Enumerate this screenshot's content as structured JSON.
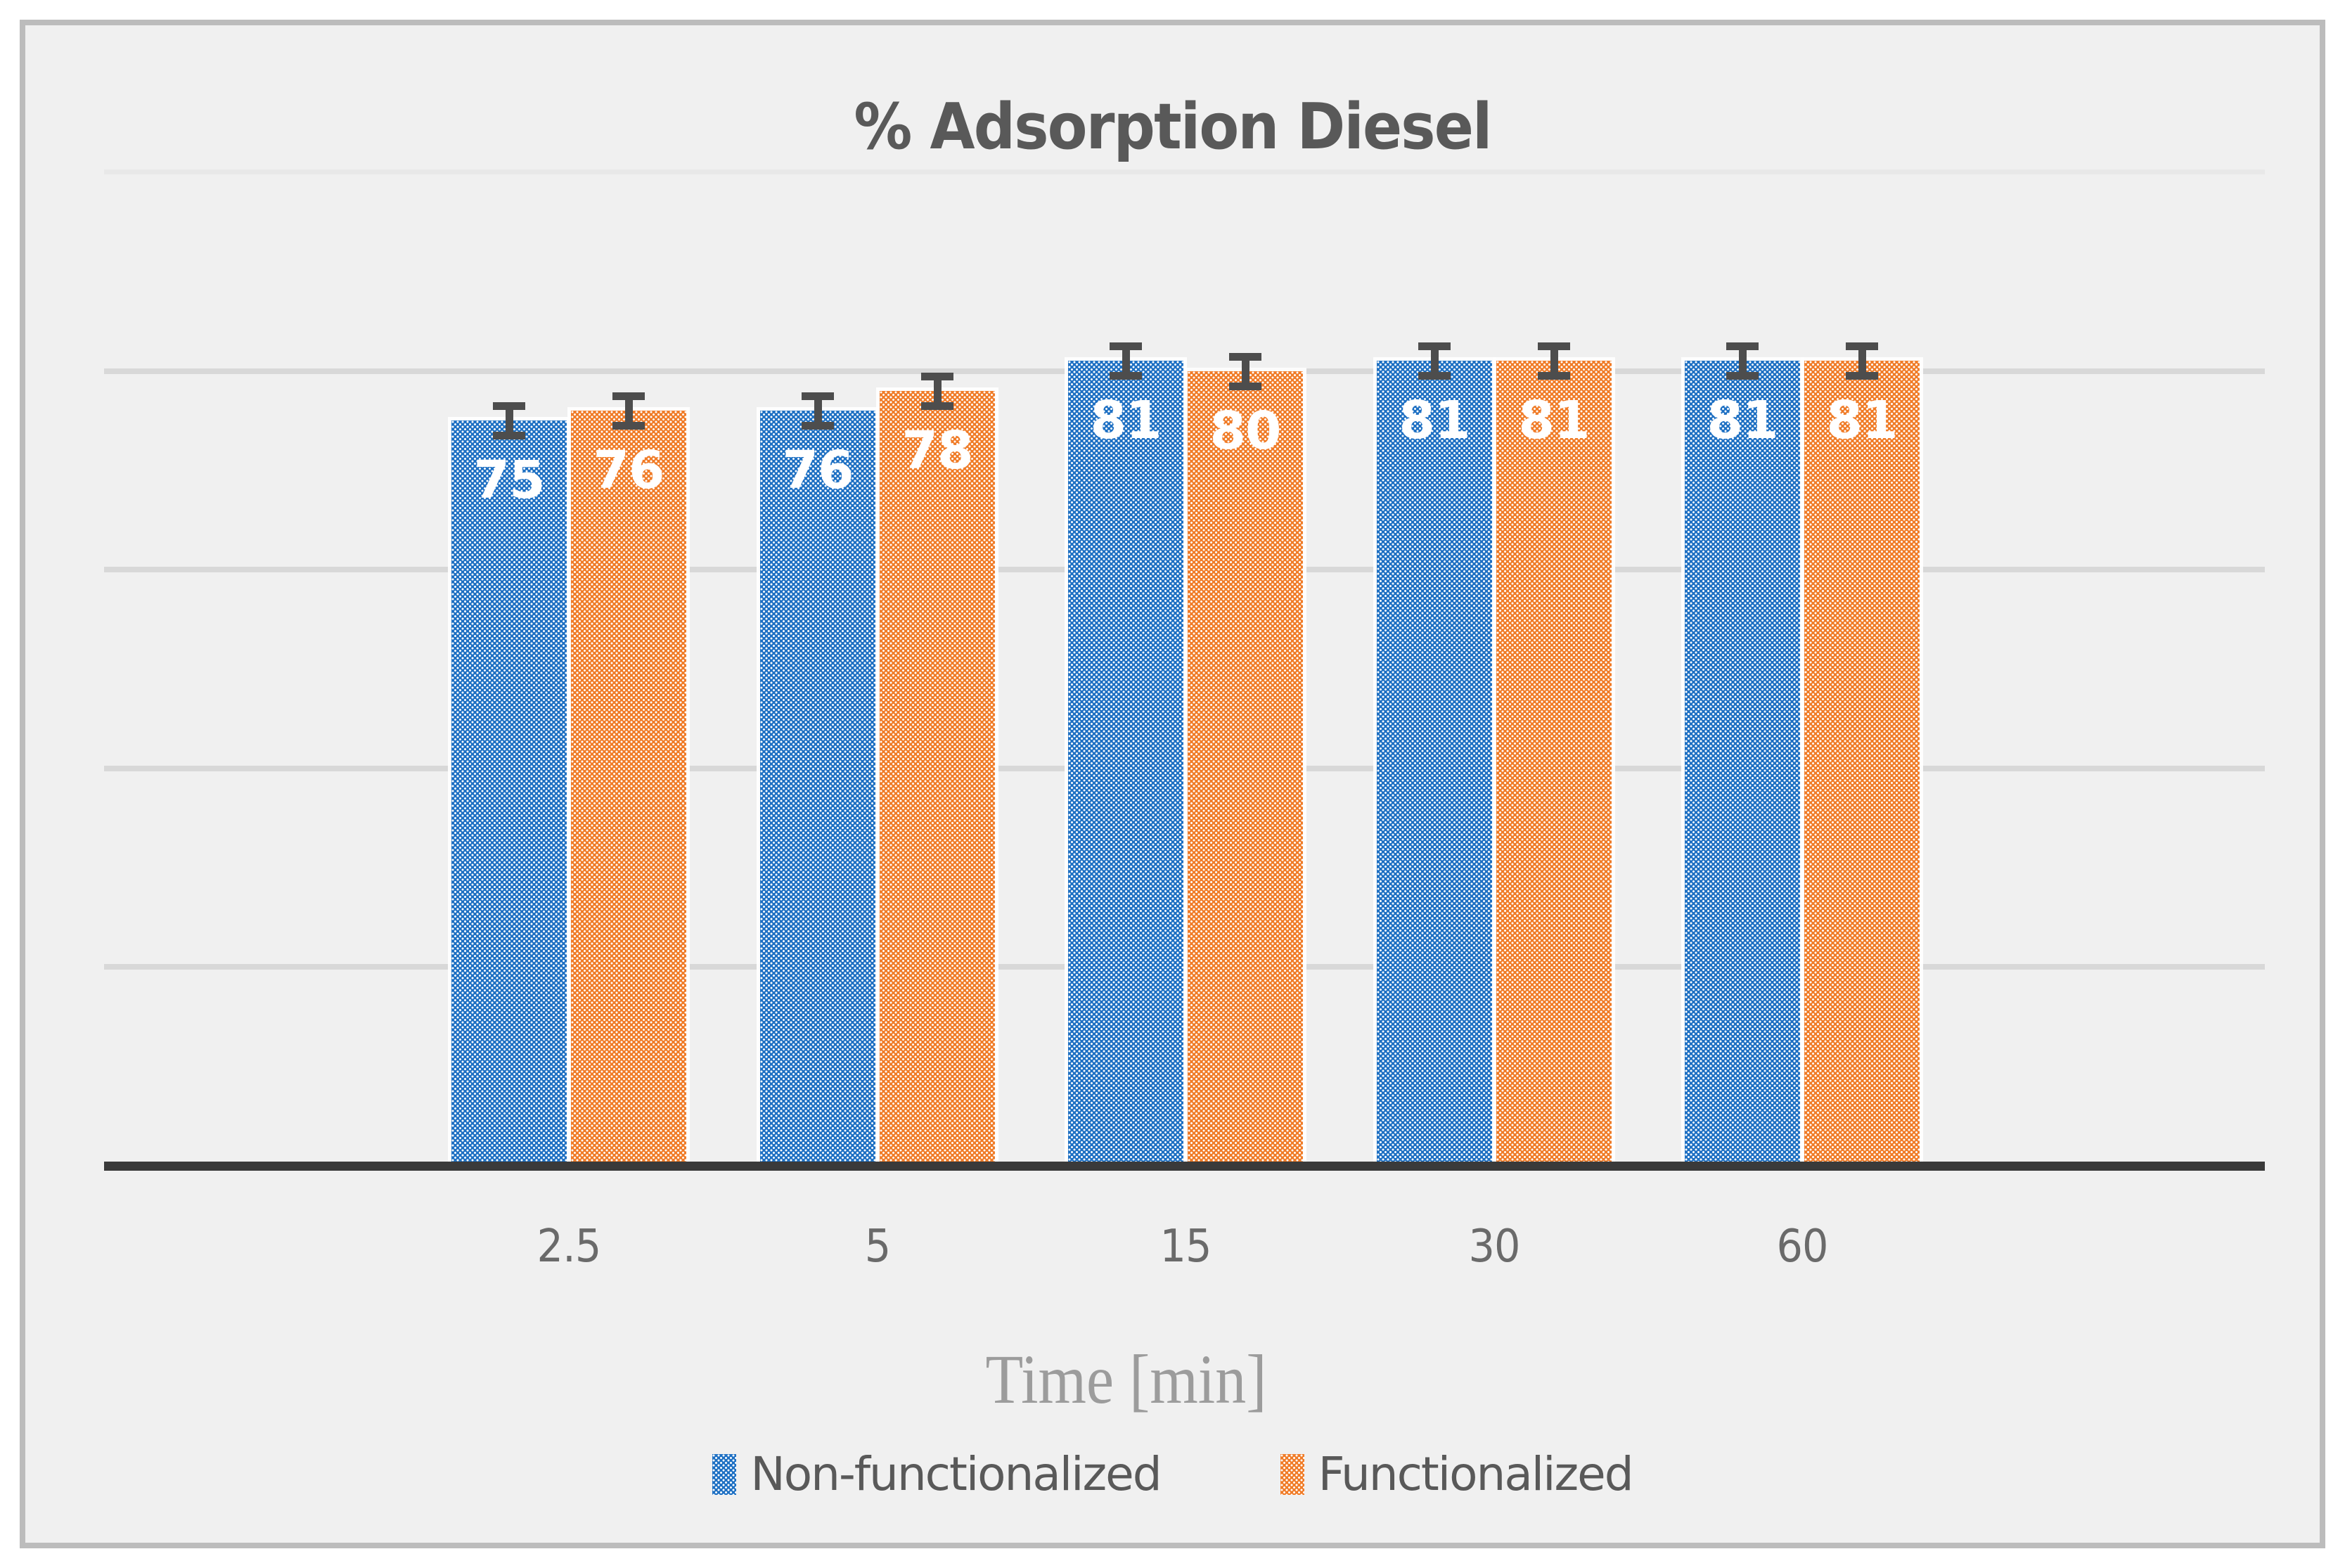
{
  "chart": {
    "title": "% Adsorption Diesel",
    "x_axis_title": "Time [min]",
    "legend_labels": [
      "Non-functionalized",
      "Functionalized"
    ]
  },
  "chart_data": {
    "type": "bar",
    "title": "% Adsorption Diesel",
    "xlabel": "Time [min]",
    "ylabel": "",
    "categories": [
      "2.5",
      "5",
      "15",
      "30",
      "60"
    ],
    "series": [
      {
        "name": "Non-functionalized",
        "color": "#1E70C3",
        "values": [
          75,
          76,
          81,
          81,
          81
        ]
      },
      {
        "name": "Functionalized",
        "color": "#F07C28",
        "values": [
          76,
          78,
          80,
          81,
          81
        ]
      }
    ],
    "error_bars_plus_minus": 1.5,
    "data_labels": true,
    "data_label_color": "#FFFFFF",
    "ylim": [
      0,
      100
    ],
    "gridline_step": 20,
    "grid": true,
    "legend_position": "bottom",
    "background_color": "#F0F0F0",
    "gridline_color": "#D8D8D8",
    "axis_line_color": "#3A3A3A",
    "error_bar_color": "#4D4D4D",
    "text_color": "#595959"
  }
}
